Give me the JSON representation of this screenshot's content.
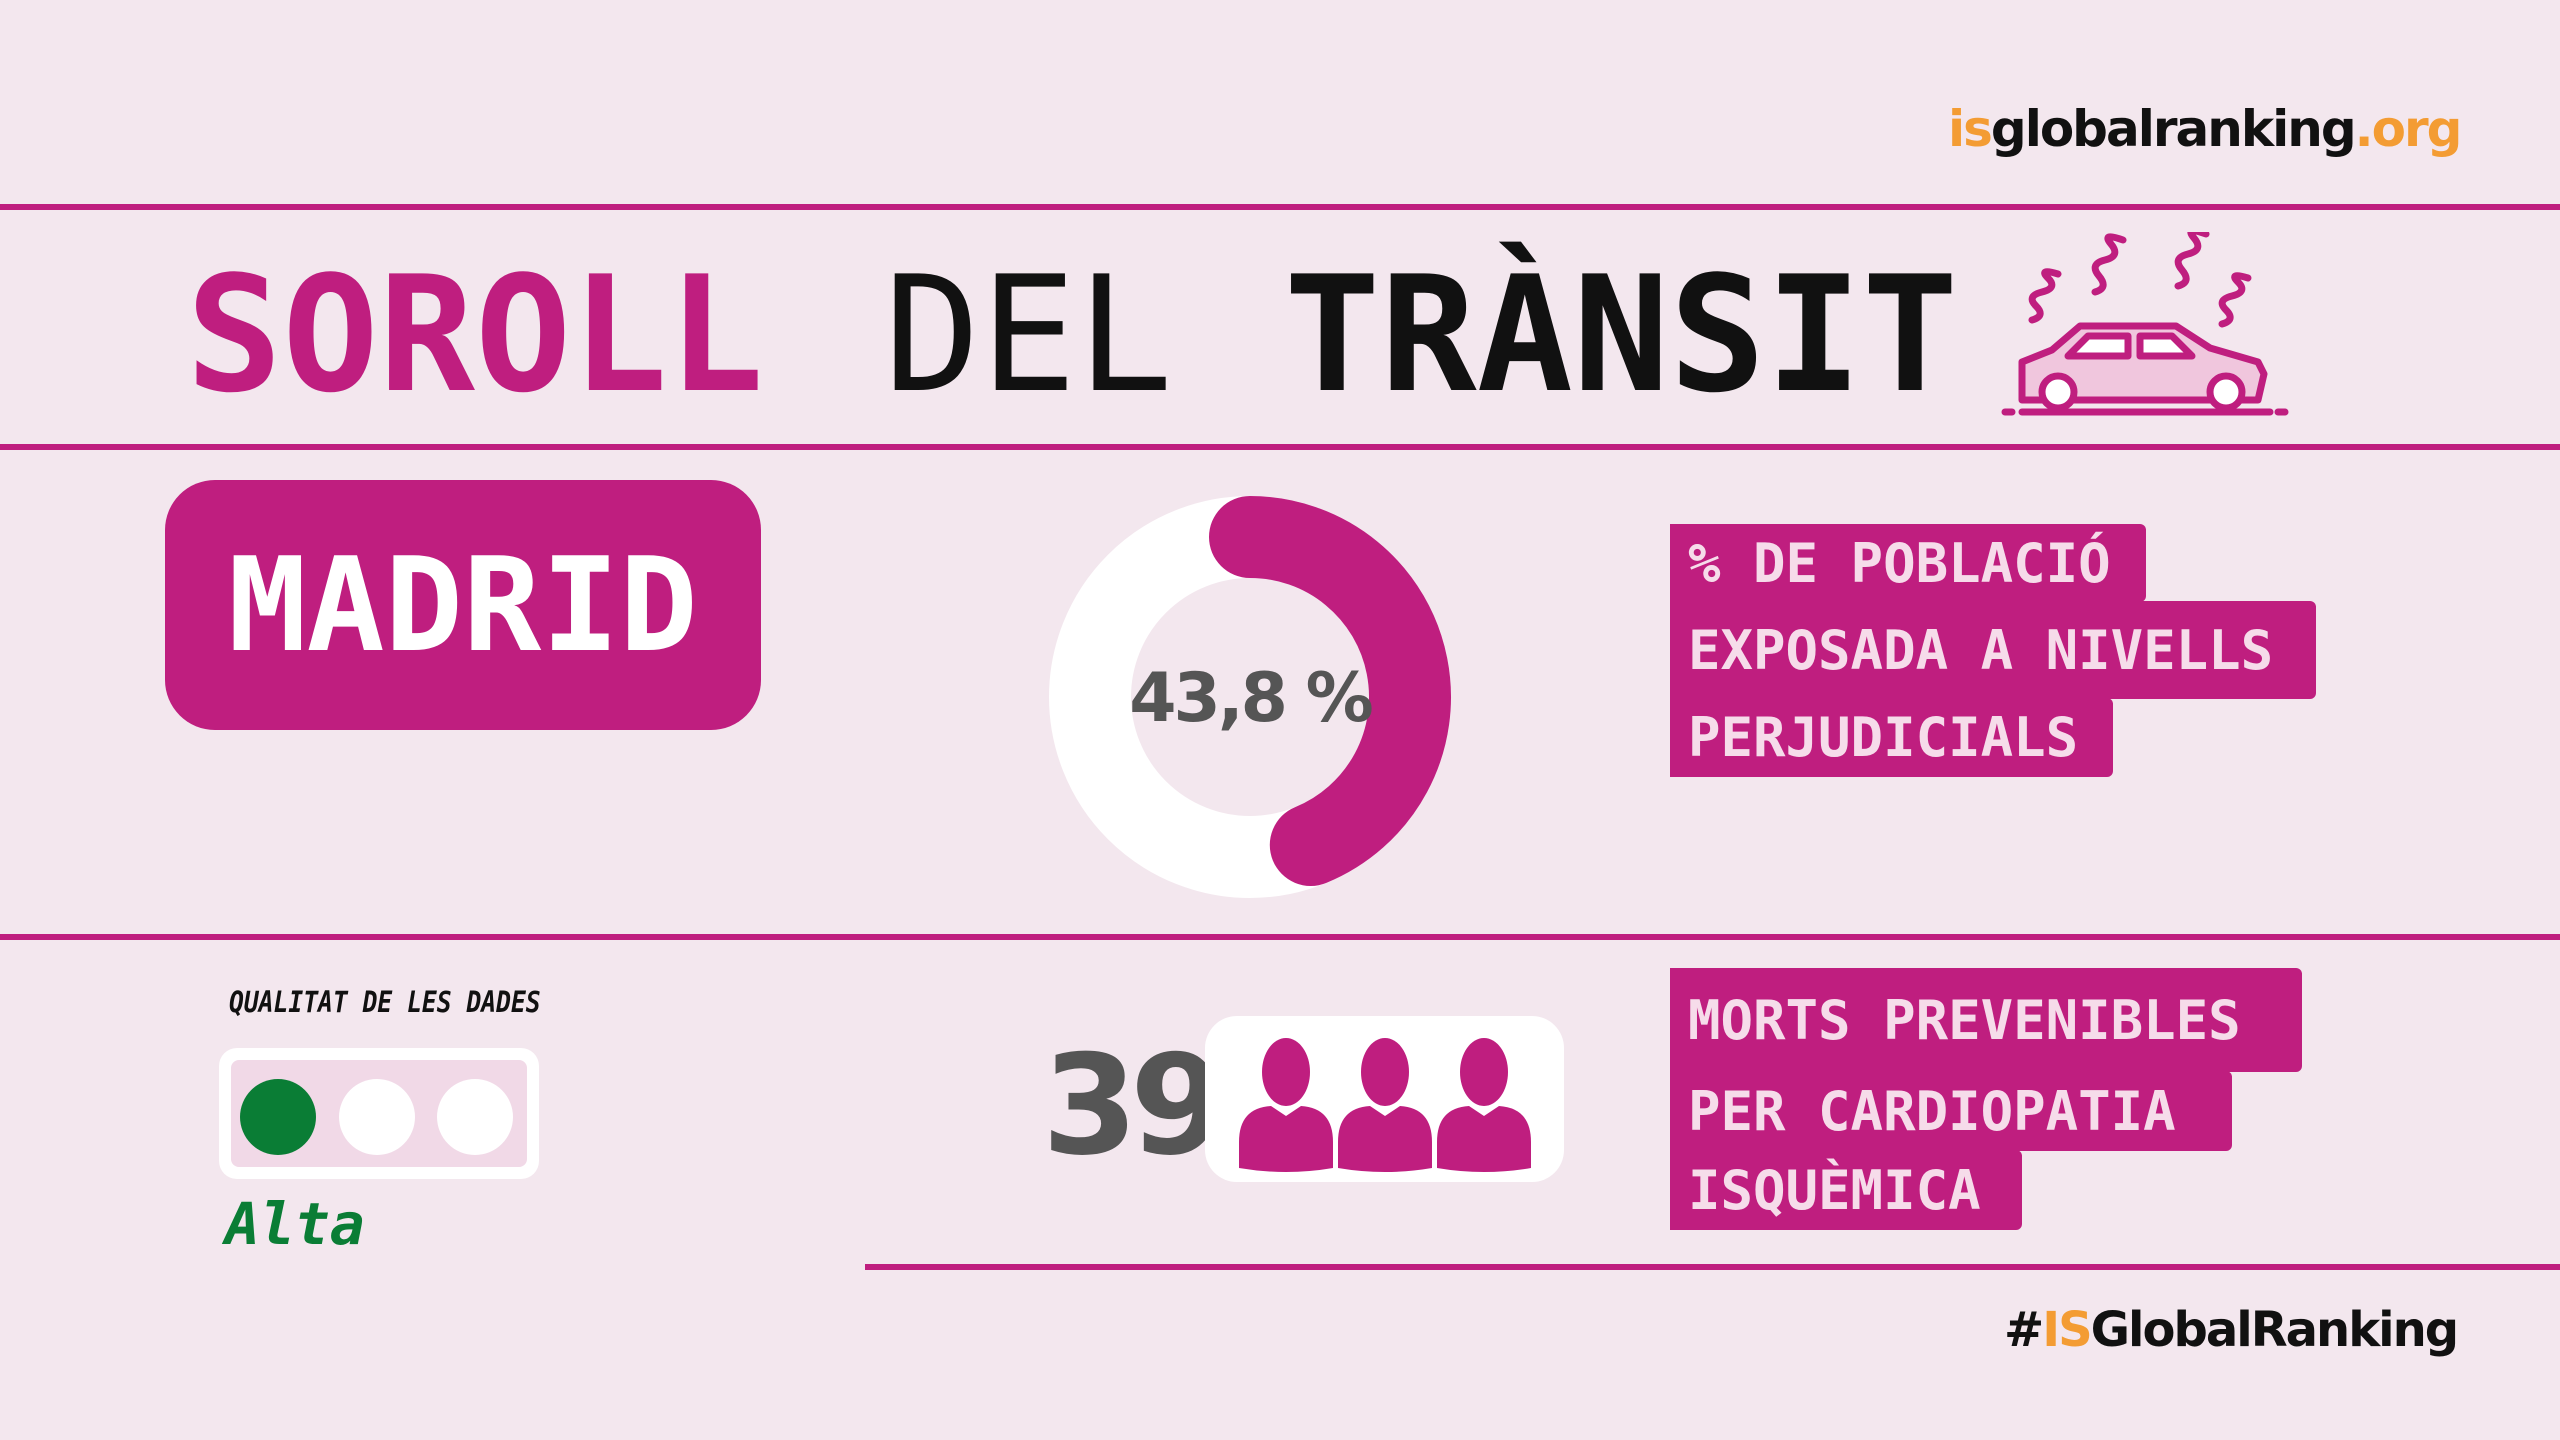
{
  "colors": {
    "accent": "#bf1e7f",
    "background": "#f3e7ee",
    "orange": "#f39c33",
    "quality_green": "#0a7d35"
  },
  "logo": {
    "prefix": "is",
    "middle": "globalranking",
    "suffix": ".org"
  },
  "title": {
    "word1": "SOROLL",
    "word2": "DEL",
    "word3": "TRÀNSIT",
    "icon": "car-noise-icon"
  },
  "city": "MADRID",
  "exposure": {
    "value": 43.8,
    "label": "43,8 %",
    "description_lines": [
      "% DE POBLACIÓ",
      "EXPOSADA A NIVELLS",
      "PERJUDICIALS"
    ]
  },
  "data_quality": {
    "label": "QUALITAT DE LES DADES",
    "level": 1,
    "levels_total": 3,
    "value": "Alta"
  },
  "deaths": {
    "value": "39",
    "icon": "people-icon",
    "description_lines": [
      "MORTS PREVENIBLES",
      "PER CARDIOPATIA",
      "ISQUÈMICA"
    ]
  },
  "hashtag": {
    "prefix": "#",
    "highlight": "IS",
    "rest": "GlobalRanking"
  }
}
